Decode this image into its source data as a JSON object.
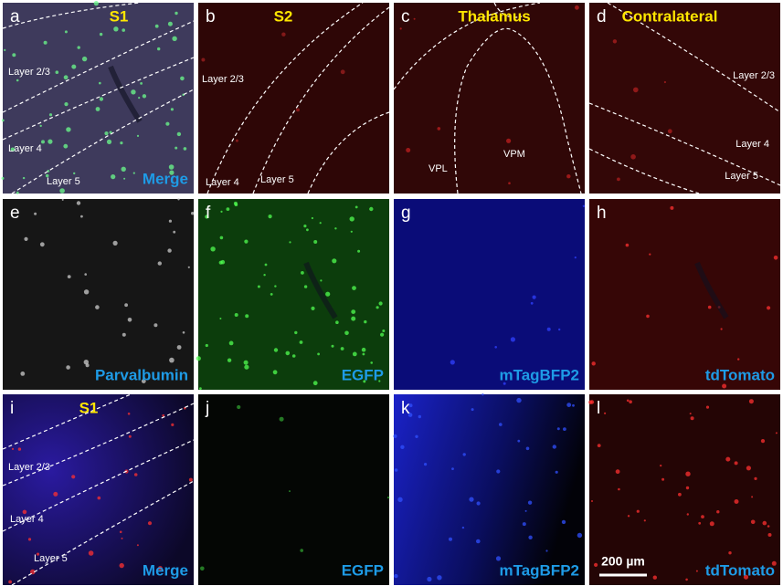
{
  "panels": [
    {
      "letter": "a",
      "title": "S1",
      "caption": "Merge",
      "labels": [
        "Layer 2/3",
        "Layer 4",
        "Layer 5"
      ]
    },
    {
      "letter": "b",
      "title": "S2",
      "labels": [
        "Layer 2/3",
        "Layer 4",
        "Layer 5"
      ]
    },
    {
      "letter": "c",
      "title": "Thalamus",
      "labels": [
        "VPL",
        "VPM"
      ]
    },
    {
      "letter": "d",
      "title": "Contralateral",
      "labels": [
        "Layer 2/3",
        "Layer 4",
        "Layer 5"
      ]
    },
    {
      "letter": "e",
      "caption": "Parvalbumin"
    },
    {
      "letter": "f",
      "caption": "EGFP"
    },
    {
      "letter": "g",
      "caption": "mTagBFP2"
    },
    {
      "letter": "h",
      "caption": "tdTomato"
    },
    {
      "letter": "i",
      "title": "S1",
      "caption": "Merge",
      "labels": [
        "Layer 2/3",
        "Layer 4",
        "Layer 5"
      ]
    },
    {
      "letter": "j",
      "caption": "EGFP"
    },
    {
      "letter": "k",
      "caption": "mTagBFP2"
    },
    {
      "letter": "l",
      "caption": "tdTomato"
    }
  ],
  "scale_bar": "200 µm"
}
